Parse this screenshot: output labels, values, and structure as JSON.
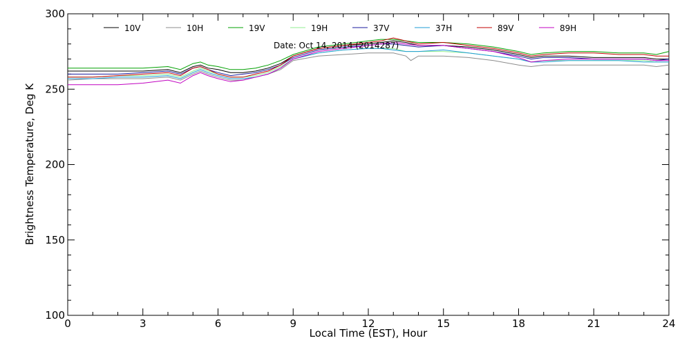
{
  "chart_data": {
    "type": "line",
    "date_label": "Date: Oct 14, 2014 (2014287)",
    "xlabel": "Local Time (EST), Hour",
    "ylabel": "Brightness Temperature, Deg K",
    "xlim": [
      0,
      24
    ],
    "ylim": [
      100,
      300
    ],
    "xticks": [
      "0",
      "3",
      "6",
      "9",
      "12",
      "15",
      "18",
      "21",
      "24"
    ],
    "yticks": [
      "100",
      "150",
      "200",
      "250",
      "300"
    ],
    "grid": false,
    "legend_position": "top",
    "series": [
      {
        "name": "10V",
        "color": "#000000",
        "x": [
          0,
          1,
          2,
          3,
          4,
          4.5,
          5,
          5.3,
          5.6,
          6,
          6.5,
          7,
          7.5,
          8,
          8.5,
          9,
          10,
          11,
          12,
          12.5,
          13,
          13.5,
          14,
          15,
          16,
          17,
          18,
          18.5,
          19,
          20,
          21,
          22,
          23,
          23.5,
          24
        ],
        "y": [
          262,
          262,
          262,
          262,
          263,
          261,
          265,
          266,
          264,
          263,
          261,
          261,
          262,
          264,
          267,
          272,
          277,
          279,
          280,
          281,
          282,
          281,
          279,
          279,
          278,
          276,
          273,
          271,
          272,
          272,
          271,
          271,
          271,
          270,
          270
        ]
      },
      {
        "name": "10H",
        "color": "#8c8c8c",
        "x": [
          0,
          1,
          2,
          3,
          4,
          4.5,
          5,
          5.3,
          5.6,
          6,
          6.5,
          7,
          7.5,
          8,
          8.5,
          9,
          10,
          11,
          12,
          12.5,
          13,
          13.5,
          13.7,
          14,
          15,
          16,
          17,
          18,
          18.5,
          19,
          20,
          21,
          22,
          23,
          23.5,
          24
        ],
        "y": [
          256,
          257,
          257,
          257,
          258,
          256,
          260,
          262,
          260,
          258,
          256,
          256,
          258,
          260,
          263,
          269,
          272,
          273,
          274,
          274,
          274,
          272,
          269,
          272,
          272,
          271,
          269,
          266,
          265,
          266,
          266,
          266,
          266,
          266,
          265,
          266
        ]
      },
      {
        "name": "19V",
        "color": "#00a000",
        "x": [
          0,
          1,
          2,
          3,
          4,
          4.5,
          5,
          5.3,
          5.6,
          6,
          6.5,
          7,
          7.5,
          8,
          8.5,
          9,
          10,
          11,
          12,
          12.5,
          13,
          13.5,
          14,
          15,
          16,
          17,
          18,
          18.5,
          19,
          20,
          21,
          22,
          23,
          23.5,
          24
        ],
        "y": [
          264,
          264,
          264,
          264,
          265,
          263,
          267,
          268,
          266,
          265,
          263,
          263,
          264,
          266,
          269,
          273,
          278,
          280,
          282,
          283,
          283,
          282,
          281,
          281,
          280,
          278,
          275,
          273,
          274,
          275,
          275,
          274,
          274,
          273,
          275
        ]
      },
      {
        "name": "19H",
        "color": "#90ee90",
        "x": [
          0,
          1,
          2,
          3,
          4,
          4.5,
          5,
          5.3,
          5.6,
          6,
          6.5,
          7,
          7.5,
          8,
          8.5,
          9,
          10,
          11,
          12,
          12.5,
          13,
          13.5,
          14,
          15,
          16,
          17,
          18,
          18.5,
          19,
          20,
          21,
          22,
          23,
          23.5,
          24
        ],
        "y": [
          258,
          258,
          259,
          259,
          260,
          258,
          262,
          264,
          262,
          260,
          258,
          258,
          259,
          261,
          265,
          270,
          274,
          276,
          277,
          277,
          277,
          275,
          275,
          275,
          274,
          272,
          270,
          268,
          269,
          269,
          269,
          269,
          269,
          268,
          268
        ]
      },
      {
        "name": "37V",
        "color": "#1a1a9c",
        "x": [
          0,
          1,
          2,
          3,
          4,
          4.5,
          5,
          5.3,
          5.6,
          6,
          6.5,
          7,
          7.5,
          8,
          8.5,
          9,
          10,
          11,
          12,
          12.5,
          13,
          13.5,
          14,
          15,
          16,
          17,
          18,
          18.5,
          19,
          20,
          21,
          22,
          23,
          23.5,
          24
        ],
        "y": [
          260,
          260,
          260,
          261,
          262,
          260,
          264,
          265,
          263,
          261,
          259,
          260,
          261,
          263,
          266,
          271,
          276,
          278,
          279,
          280,
          280,
          279,
          278,
          279,
          277,
          275,
          272,
          270,
          271,
          271,
          270,
          270,
          270,
          269,
          270
        ]
      },
      {
        "name": "37H",
        "color": "#1e9bd6",
        "x": [
          0,
          1,
          2,
          3,
          4,
          4.5,
          5,
          5.3,
          5.6,
          6,
          6.5,
          7,
          7.5,
          8,
          8.5,
          9,
          10,
          11,
          12,
          12.5,
          13,
          13.5,
          14,
          15,
          16,
          17,
          18,
          18.5,
          19,
          20,
          21,
          22,
          23,
          23.5,
          24
        ],
        "y": [
          257,
          257,
          258,
          258,
          259,
          257,
          261,
          263,
          261,
          259,
          257,
          257,
          258,
          260,
          264,
          270,
          274,
          276,
          277,
          277,
          276,
          275,
          275,
          276,
          274,
          272,
          270,
          268,
          268,
          269,
          269,
          269,
          268,
          268,
          268
        ]
      },
      {
        "name": "89V",
        "color": "#c00000",
        "x": [
          0,
          1,
          2,
          3,
          4,
          4.5,
          5,
          5.3,
          5.6,
          6,
          6.5,
          7,
          7.5,
          8,
          8.5,
          9,
          10,
          11,
          12,
          12.5,
          13,
          13.5,
          14,
          15,
          16,
          17,
          18,
          18.5,
          19,
          20,
          21,
          22,
          23,
          23.5,
          24
        ],
        "y": [
          258,
          258,
          259,
          260,
          261,
          259,
          264,
          265,
          263,
          260,
          258,
          258,
          260,
          262,
          266,
          272,
          277,
          279,
          281,
          282,
          284,
          282,
          280,
          281,
          279,
          277,
          274,
          272,
          273,
          274,
          274,
          273,
          273,
          272,
          272
        ]
      },
      {
        "name": "89H",
        "color": "#c000c0",
        "x": [
          0,
          1,
          2,
          3,
          4,
          4.5,
          5,
          5.3,
          5.6,
          6,
          6.5,
          7,
          7.5,
          8,
          8.5,
          9,
          10,
          11,
          12,
          12.5,
          13,
          13.5,
          14,
          15,
          16,
          17,
          18,
          18.5,
          19,
          20,
          21,
          22,
          23,
          23.5,
          24
        ],
        "y": [
          253,
          253,
          253,
          254,
          256,
          254,
          259,
          261,
          259,
          257,
          255,
          256,
          258,
          260,
          264,
          270,
          275,
          277,
          279,
          280,
          281,
          280,
          279,
          279,
          277,
          275,
          271,
          268,
          269,
          270,
          270,
          270,
          270,
          269,
          269
        ]
      }
    ]
  }
}
